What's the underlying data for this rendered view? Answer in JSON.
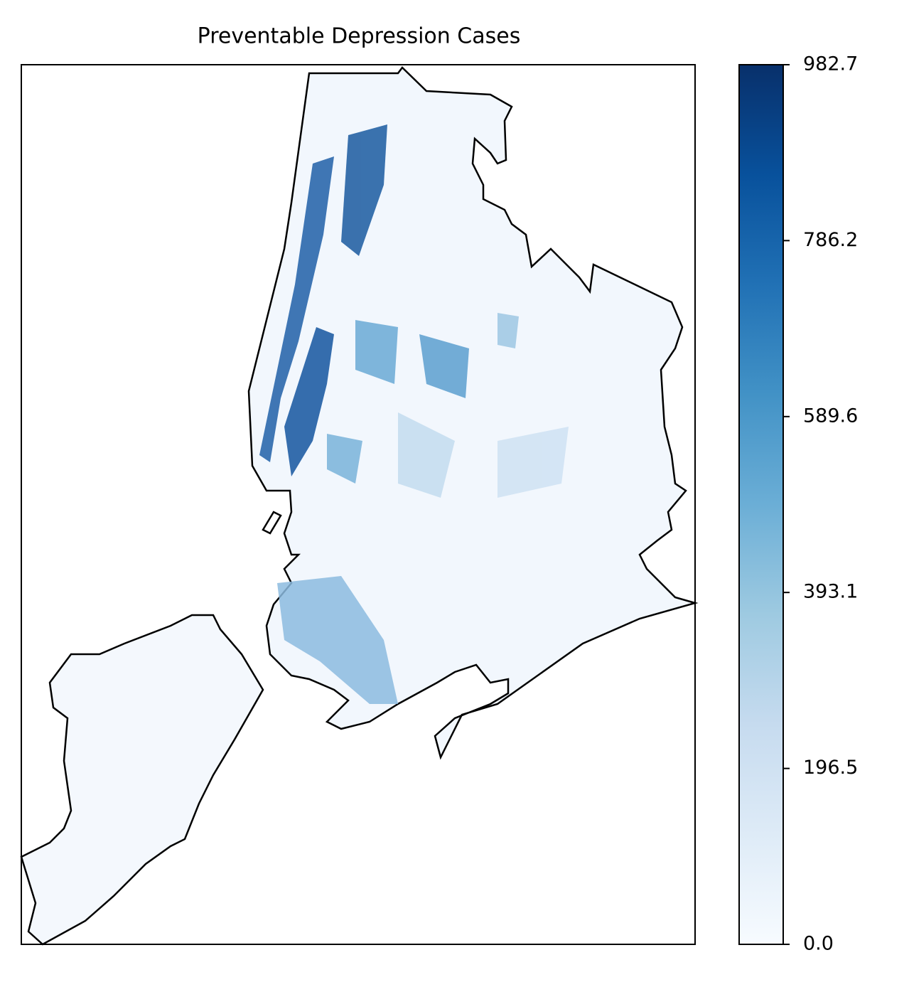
{
  "title": "Preventable Depression Cases",
  "colorbar": {
    "colormap": "Blues",
    "lim": [
      0,
      982.7
    ],
    "ticks": [
      {
        "value": 0,
        "label": "0.0"
      },
      196.5,
      393.1,
      589.6,
      786.2,
      982.7
    ]
  }
}
